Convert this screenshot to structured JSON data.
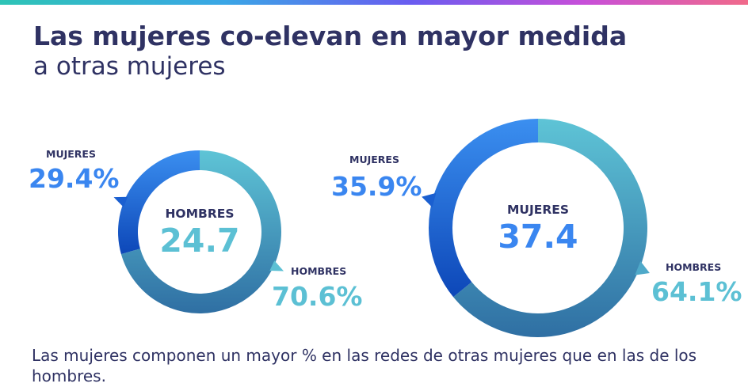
{
  "header": {
    "title": "Las mujeres co-elevan en mayor medida",
    "subtitle": "a otras mujeres"
  },
  "footnote": "Las mujeres componen un mayor % en las redes de otras mujeres que en las de los hombres.",
  "colors": {
    "mujeres_start": "#3b8ff0",
    "mujeres_end": "#0d47b8",
    "hombres_start": "#5ec4d6",
    "hombres_end": "#2f6fa3",
    "title": "#2f3263"
  },
  "chart_data": [
    {
      "type": "pie",
      "center_label": "HOMBRES",
      "center_value": "24.7",
      "slices": [
        {
          "label": "MUJERES",
          "display": "29.4%",
          "value": 29.4
        },
        {
          "label": "HOMBRES",
          "display": "70.6%",
          "value": 70.6
        }
      ]
    },
    {
      "type": "pie",
      "center_label": "MUJERES",
      "center_value": "37.4",
      "slices": [
        {
          "label": "MUJERES",
          "display": "35.9%",
          "value": 35.9
        },
        {
          "label": "HOMBRES",
          "display": "64.1%",
          "value": 64.1
        }
      ]
    }
  ]
}
